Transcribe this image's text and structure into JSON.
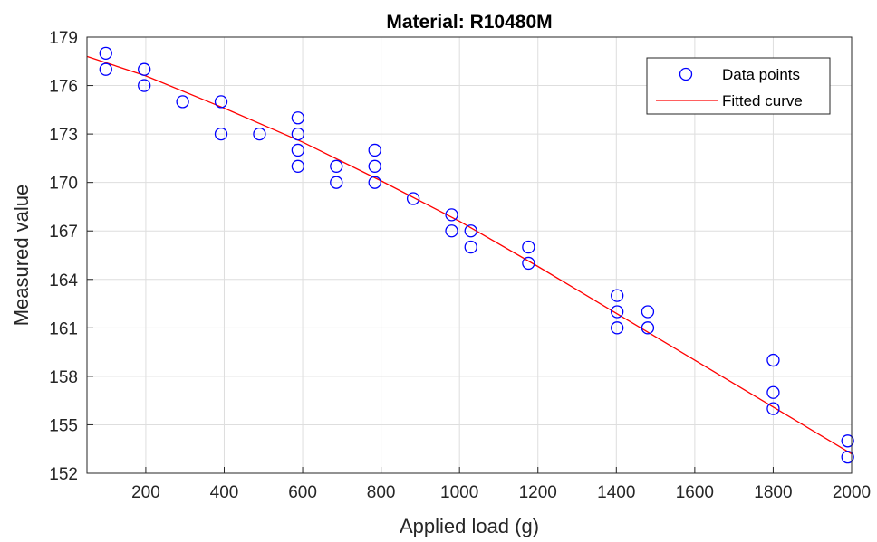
{
  "chart_data": {
    "type": "scatter",
    "title": "Material: R10480M",
    "xlabel": "Applied load (g)",
    "ylabel": "Measured value",
    "xlim": [
      50,
      2000
    ],
    "ylim": [
      152,
      179
    ],
    "xticks": [
      "200",
      "400",
      "600",
      "800",
      "1000",
      "1200",
      "1400",
      "1600",
      "1800",
      "2000"
    ],
    "yticks": [
      "152",
      "155",
      "158",
      "161",
      "164",
      "167",
      "170",
      "173",
      "176",
      "179"
    ],
    "grid": true,
    "legend_position": "top-right",
    "legend": [
      "Data points",
      "Fitted curve"
    ],
    "colors": {
      "points": "#0000ff",
      "fit": "#ff0000"
    },
    "series": [
      {
        "name": "Data points",
        "marker": "circle",
        "x": [
          98,
          98,
          196,
          196,
          294,
          392,
          392,
          490,
          588,
          588,
          588,
          588,
          686,
          686,
          784,
          784,
          784,
          882,
          980,
          980,
          1029,
          1029,
          1176,
          1176,
          1402,
          1402,
          1402,
          1480,
          1480,
          1800,
          1800,
          1800,
          1990,
          1990
        ],
        "y": [
          178,
          177,
          177,
          176,
          175,
          175,
          173,
          173,
          174,
          173,
          172,
          171,
          171,
          170,
          172,
          171,
          170,
          169,
          168,
          167,
          167,
          166,
          166,
          165,
          163,
          162,
          161,
          162,
          161,
          159,
          157,
          156,
          154,
          153
        ]
      },
      {
        "name": "Fitted curve",
        "line": true,
        "x": [
          50,
          200,
          400,
          600,
          800,
          1000,
          1200,
          1400,
          1600,
          1800,
          2000
        ],
        "y": [
          177.8,
          176.6,
          174.6,
          172.5,
          170.1,
          167.6,
          164.8,
          161.9,
          159.0,
          156.1,
          153.2
        ]
      }
    ]
  }
}
